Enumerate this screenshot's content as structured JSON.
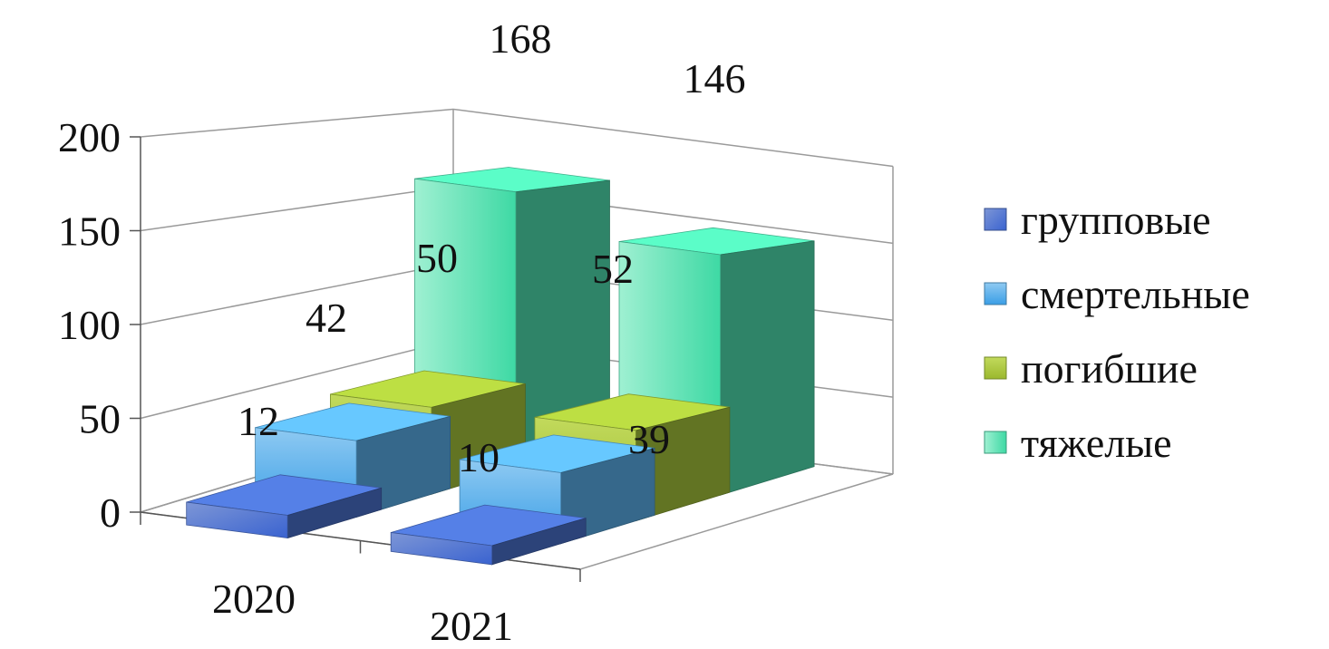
{
  "chart_data": {
    "type": "bar",
    "subtype": "3d-clustered-depth",
    "categories": [
      "2020",
      "2021"
    ],
    "series": [
      {
        "name": "групповые",
        "values": [
          12,
          10
        ],
        "color": "#4a6fc9"
      },
      {
        "name": "смертельные",
        "values": [
          42,
          39
        ],
        "color": "#5aaee8"
      },
      {
        "name": "погибшие",
        "values": [
          50,
          52
        ],
        "color": "#a4c23a"
      },
      {
        "name": "тяжелые",
        "values": [
          168,
          146
        ],
        "color": "#4fdcae"
      }
    ],
    "yticks": [
      "0",
      "50",
      "100",
      "150",
      "200"
    ],
    "ylim": [
      0,
      200
    ],
    "grid": true,
    "legend_position": "right"
  }
}
